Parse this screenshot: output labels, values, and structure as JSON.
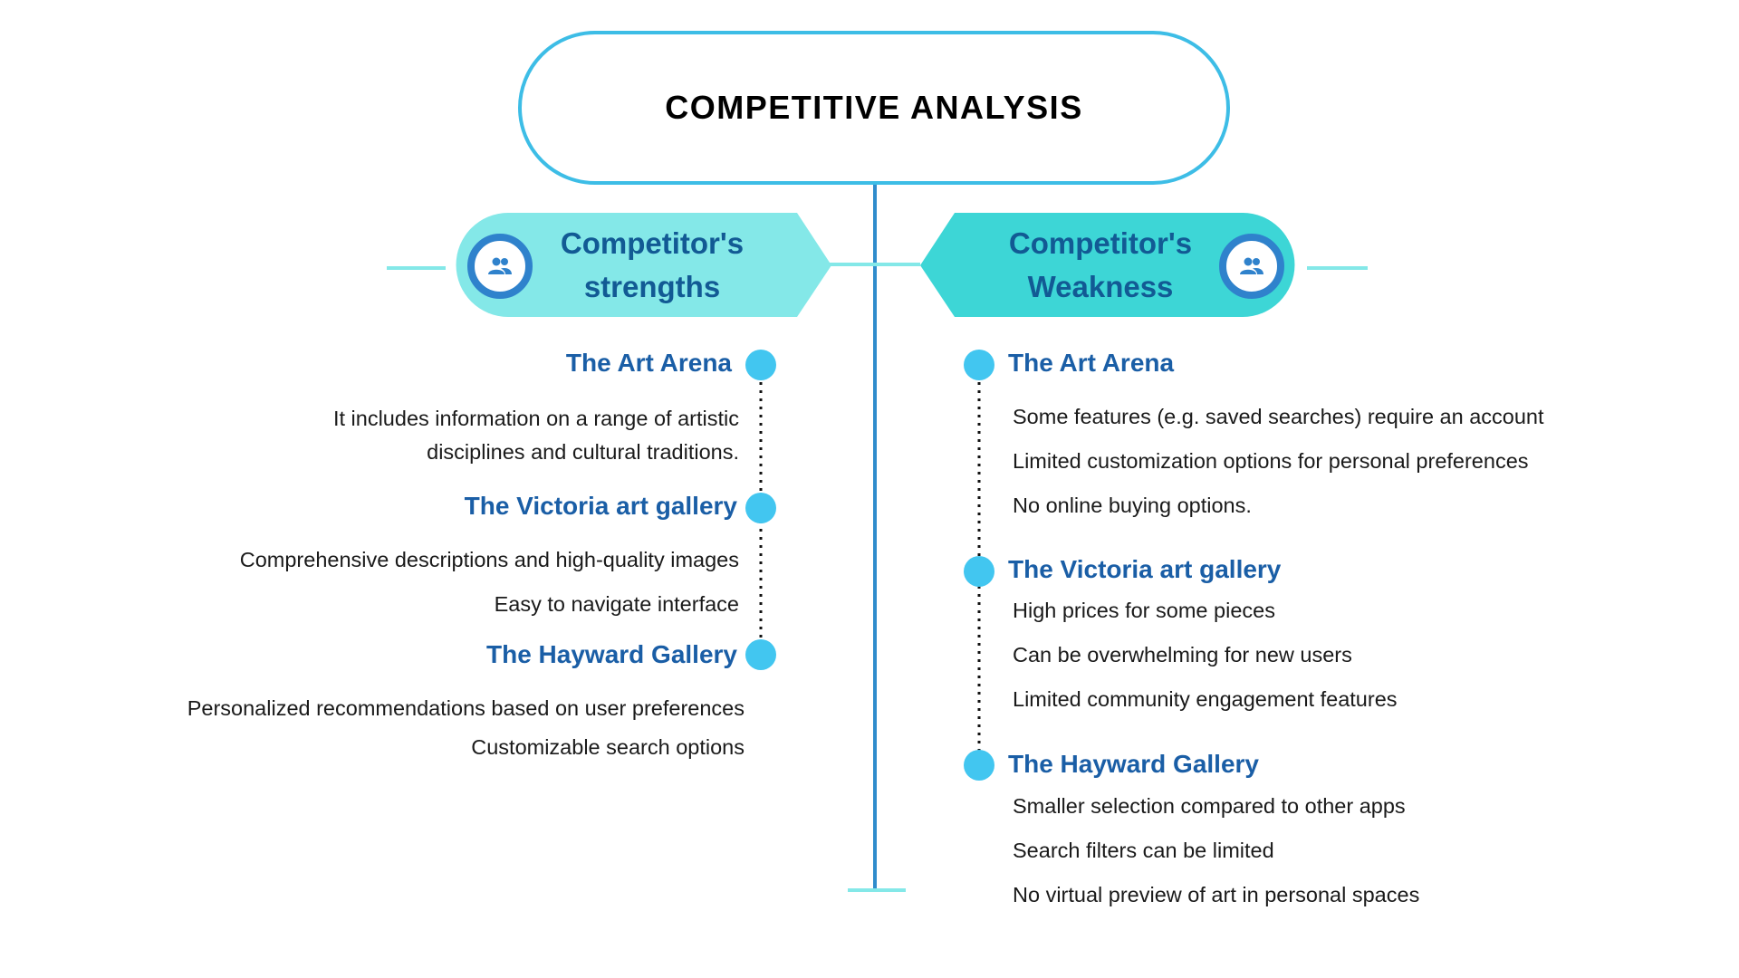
{
  "title": "COMPETITIVE ANALYSIS",
  "colors": {
    "primary_line": "#2f8ccc",
    "accent_light": "#84e8e8",
    "accent_dark": "#3dd6d6",
    "dot": "#42c6f0",
    "heading": "#1a5ea6",
    "banner_text": "#125a94"
  },
  "strengths": {
    "banner": [
      "Competitor's",
      "strengths"
    ],
    "icon": "people-icon",
    "groups": [
      {
        "heading": "The Art Arena",
        "items": [
          "It includes information on a range of artistic",
          "disciplines and cultural traditions."
        ]
      },
      {
        "heading": "The Victoria art gallery",
        "items": [
          "Comprehensive descriptions and high-quality images",
          "Easy to navigate interface"
        ]
      },
      {
        "heading": "The Hayward Gallery",
        "items": [
          "Personalized recommendations based on user preferences",
          "Customizable search options"
        ]
      }
    ]
  },
  "weaknesses": {
    "banner": [
      "Competitor's",
      "Weakness"
    ],
    "icon": "people-icon",
    "groups": [
      {
        "heading": "The Art Arena",
        "items": [
          "Some features (e.g. saved searches) require an account",
          "Limited customization options for personal preferences",
          "No online buying options."
        ]
      },
      {
        "heading": "The Victoria art gallery",
        "items": [
          "High prices for some pieces",
          "Can be overwhelming for new users",
          "Limited community engagement features"
        ]
      },
      {
        "heading": "The Hayward Gallery",
        "items": [
          "Smaller selection compared to other apps",
          "Search filters can be limited",
          "No virtual preview of art in personal spaces"
        ]
      }
    ]
  }
}
